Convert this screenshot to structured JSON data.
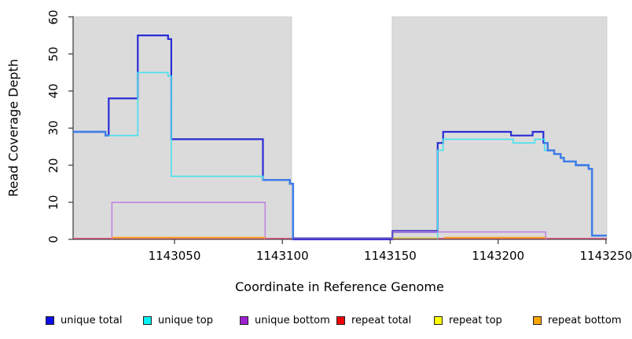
{
  "chart_data": {
    "type": "line",
    "subtype": "step-coverage",
    "title": "",
    "xlabel": "Coordinate in Reference Genome",
    "ylabel": "Read Coverage Depth",
    "xlim": [
      1143003,
      1143250.4
    ],
    "ylim": [
      0,
      60
    ],
    "xticks": [
      1143050,
      1143100,
      1143150,
      1143200,
      1143250
    ],
    "yticks": [
      0,
      10,
      20,
      30,
      40,
      50,
      60
    ],
    "grid": false,
    "background_shading": {
      "color": "#DBDBDB",
      "regions": [
        [
          1143003,
          1143104.3
        ],
        [
          1143150.9,
          1143250.4
        ]
      ]
    },
    "series": [
      {
        "name": "unique total",
        "color": "#2B2BD5",
        "line_width": 2.2,
        "segments": [
          [
            [
              1143003,
              29
            ],
            [
              1143018,
              28
            ],
            [
              1143019.5,
              38
            ],
            [
              1143033,
              55
            ],
            [
              1143047,
              54
            ],
            [
              1143048.5,
              27
            ],
            [
              1143091,
              16
            ],
            [
              1143103.5,
              15
            ],
            [
              1143105,
              0
            ],
            [
              1143151,
              2
            ],
            [
              1143172,
              26
            ],
            [
              1143174.5,
              29
            ],
            [
              1143206,
              28
            ],
            [
              1143216,
              29
            ],
            [
              1143221,
              26
            ],
            [
              1143223,
              24
            ],
            [
              1143226,
              23
            ],
            [
              1143229,
              22
            ],
            [
              1143230.5,
              21
            ],
            [
              1143236,
              20
            ],
            [
              1143242,
              19
            ],
            [
              1143243.5,
              1
            ],
            [
              1143250.4,
              1
            ]
          ]
        ]
      },
      {
        "name": "unique top",
        "color": "#45E2EE",
        "line_width": 1.6,
        "segments": [
          [
            [
              1143003,
              29
            ],
            [
              1143018,
              28
            ],
            [
              1143033,
              45
            ],
            [
              1143047,
              44
            ],
            [
              1143048.5,
              17
            ],
            [
              1143091,
              16
            ],
            [
              1143103.5,
              15
            ],
            [
              1143105,
              0
            ]
          ],
          [
            [
              1143172,
              0
            ],
            [
              1143172,
              24
            ],
            [
              1143174.5,
              27
            ],
            [
              1143207,
              26
            ],
            [
              1143217,
              27
            ],
            [
              1143221.5,
              24
            ],
            [
              1143226,
              23
            ],
            [
              1143229,
              22
            ],
            [
              1143230.5,
              21
            ],
            [
              1143236,
              20
            ],
            [
              1143242,
              19
            ],
            [
              1143243.5,
              1
            ],
            [
              1143250.4,
              1
            ]
          ]
        ]
      },
      {
        "name": "unique bottom",
        "color": "#C184DE",
        "line_width": 1.6,
        "segments": [
          [
            [
              1143021,
              0
            ],
            [
              1143021,
              10
            ],
            [
              1143092,
              0
            ]
          ],
          [
            [
              1143151,
              0
            ],
            [
              1143151,
              2
            ],
            [
              1143222,
              0
            ]
          ]
        ]
      },
      {
        "name": "repeat total",
        "color": "#DD5580",
        "line_width": 1.3,
        "segments": [
          [
            [
              1143003,
              0
            ],
            [
              1143250.4,
              0
            ]
          ]
        ]
      },
      {
        "name": "repeat top",
        "color": "#C8D24E",
        "line_width": 1.3,
        "segments": [
          [
            [
              1143151,
              0
            ],
            [
              1143172,
              0
            ]
          ]
        ]
      },
      {
        "name": "repeat bottom",
        "color": "#FFA226",
        "line_width": 2,
        "segments": [
          [
            [
              1143021,
              0
            ],
            [
              1143092,
              0
            ]
          ],
          [
            [
              1143175,
              0
            ],
            [
              1143222,
              0
            ]
          ]
        ]
      }
    ],
    "overlap_highlights": [
      {
        "name": "total-top-overlap-left",
        "color": "#3C7FE8",
        "line_width": 2.4,
        "steps": [
          [
            1143003,
            29
          ],
          [
            1143018,
            28
          ],
          [
            1143019.5,
            28
          ]
        ]
      },
      {
        "name": "total-top-overlap-mid",
        "color": "#3C7FE8",
        "line_width": 2.4,
        "steps": [
          [
            1143091,
            16
          ],
          [
            1143103.5,
            15
          ],
          [
            1143105,
            0
          ]
        ]
      },
      {
        "name": "total-top-overlap-right",
        "color": "#3C7FE8",
        "line_width": 2.4,
        "steps": [
          [
            1143221,
            26
          ],
          [
            1143223,
            24
          ],
          [
            1143226,
            23
          ],
          [
            1143229,
            22
          ],
          [
            1143230.5,
            21
          ],
          [
            1143236,
            20
          ],
          [
            1143242,
            19
          ],
          [
            1143243.5,
            1
          ],
          [
            1143250.4,
            1
          ]
        ]
      },
      {
        "name": "total-bottom-overlap-gap",
        "color": "#5A50C8",
        "line_width": 1.8,
        "steps": [
          [
            1143105,
            0
          ],
          [
            1143151,
            2
          ],
          [
            1143172,
            2
          ]
        ]
      }
    ],
    "legend": {
      "position": "bottom",
      "entries": [
        {
          "label": "unique total",
          "color": "#0D0DE8"
        },
        {
          "label": "unique top",
          "color": "#00F2F2"
        },
        {
          "label": "unique bottom",
          "color": "#A020D0"
        },
        {
          "label": "repeat total",
          "color": "#F00000"
        },
        {
          "label": "repeat top",
          "color": "#FFFF00"
        },
        {
          "label": "repeat bottom",
          "color": "#FFA500"
        }
      ]
    }
  }
}
